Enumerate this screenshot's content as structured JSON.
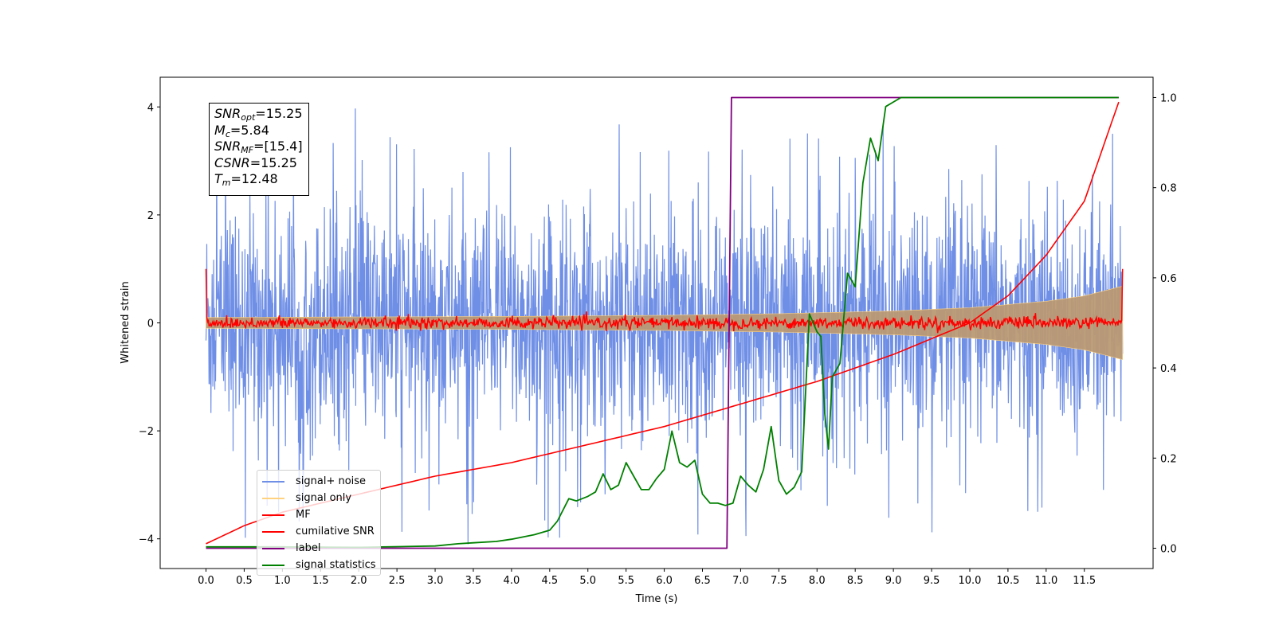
{
  "chart_data": {
    "type": "line",
    "xlabel": "Time (s)",
    "ylabel": "Whitened strain",
    "xlim": [
      -0.6,
      12.4
    ],
    "ylim": [
      -4.55,
      4.55
    ],
    "y2lim": [
      -0.045,
      1.045
    ],
    "grid": false,
    "legend_position": "lower-left",
    "x_ticks": [
      "0.0",
      "0.5",
      "1.0",
      "1.5",
      "2.0",
      "2.5",
      "3.0",
      "3.5",
      "4.0",
      "4.5",
      "5.0",
      "5.5",
      "6.0",
      "6.5",
      "7.0",
      "7.5",
      "8.0",
      "8.5",
      "9.0",
      "9.5",
      "10.0",
      "10.5",
      "11.0",
      "11.5"
    ],
    "y_ticks": [
      "−4",
      "−2",
      "0",
      "2",
      "4"
    ],
    "y2_ticks": [
      "0.0",
      "0.2",
      "0.4",
      "0.6",
      "0.8",
      "1.0"
    ],
    "annotation": {
      "snr_opt": "=15.25",
      "mc": "=5.84",
      "snr_mf": "=[15.4]",
      "csnr": "=15.25",
      "tm": "=12.48"
    },
    "colors": {
      "signal_noise": "#6f8fe6",
      "signal_only": "#ffd27f",
      "signal_overlap": "#bb9a74",
      "mf": "#ff0000",
      "cumulative_snr": "#ff0000",
      "label": "#800080",
      "signal_statistics": "#008000"
    },
    "series": [
      {
        "name": "signal+ noise",
        "axis": "left",
        "description_envelope": "dense noise roughly between -2.9 and 3.0, peaks to about 4.0 and -4.1",
        "x_range": [
          0.0,
          12.0
        ],
        "approx_band": [
          -2.9,
          3.0
        ]
      },
      {
        "name": "signal only",
        "axis": "left",
        "x_range": [
          0.0,
          12.0
        ],
        "envelope": {
          "x": [
            0.0,
            2.0,
            4.0,
            6.0,
            7.5,
            9.0,
            10.0,
            11.0,
            11.5,
            12.0
          ],
          "amplitude": [
            0.1,
            0.11,
            0.12,
            0.14,
            0.17,
            0.22,
            0.28,
            0.4,
            0.5,
            0.68
          ]
        }
      },
      {
        "name": "MF",
        "axis": "left",
        "x_range": [
          0.0,
          12.0
        ],
        "note_values": "noisy around 0 with amplitude about 0.1, starting and ending spikes at 1.0"
      },
      {
        "name": "cumilative SNR",
        "axis": "right",
        "x": [
          0.0,
          0.5,
          1.0,
          2.0,
          3.0,
          4.0,
          5.0,
          6.0,
          7.0,
          8.0,
          9.0,
          10.0,
          10.5,
          11.0,
          11.5,
          11.95
        ],
        "y": [
          0.01,
          0.05,
          0.08,
          0.12,
          0.16,
          0.19,
          0.23,
          0.27,
          0.32,
          0.37,
          0.43,
          0.5,
          0.56,
          0.65,
          0.77,
          0.99
        ]
      },
      {
        "name": "label",
        "axis": "right",
        "x": [
          0.0,
          6.82,
          6.88,
          11.95
        ],
        "y": [
          0.0,
          0.0,
          1.0,
          1.0
        ]
      },
      {
        "name": "signal statistics",
        "axis": "right",
        "x": [
          0.0,
          1.0,
          2.0,
          3.0,
          3.3,
          3.5,
          3.8,
          4.0,
          4.3,
          4.5,
          4.6,
          4.75,
          4.85,
          5.0,
          5.1,
          5.2,
          5.3,
          5.4,
          5.5,
          5.6,
          5.7,
          5.8,
          5.9,
          6.0,
          6.1,
          6.2,
          6.3,
          6.4,
          6.5,
          6.6,
          6.7,
          6.8,
          6.9,
          7.0,
          7.1,
          7.2,
          7.3,
          7.4,
          7.5,
          7.6,
          7.7,
          7.8,
          7.9,
          8.0,
          8.05,
          8.1,
          8.15,
          8.2,
          8.3,
          8.4,
          8.5,
          8.6,
          8.7,
          8.8,
          8.9,
          9.0,
          9.1,
          9.2,
          9.3,
          9.5,
          9.8,
          10.0,
          11.0,
          11.95
        ],
        "y": [
          0.003,
          0.003,
          0.002,
          0.005,
          0.01,
          0.012,
          0.015,
          0.02,
          0.03,
          0.04,
          0.06,
          0.11,
          0.105,
          0.115,
          0.125,
          0.165,
          0.13,
          0.14,
          0.19,
          0.16,
          0.13,
          0.13,
          0.155,
          0.175,
          0.26,
          0.19,
          0.18,
          0.195,
          0.12,
          0.1,
          0.1,
          0.095,
          0.1,
          0.16,
          0.14,
          0.125,
          0.175,
          0.27,
          0.15,
          0.12,
          0.135,
          0.17,
          0.52,
          0.48,
          0.47,
          0.3,
          0.22,
          0.38,
          0.41,
          0.61,
          0.58,
          0.81,
          0.91,
          0.86,
          0.98,
          0.99,
          1.0,
          1.0,
          1.0,
          1.0,
          1.0,
          1.0,
          1.0,
          1.0
        ]
      }
    ]
  }
}
